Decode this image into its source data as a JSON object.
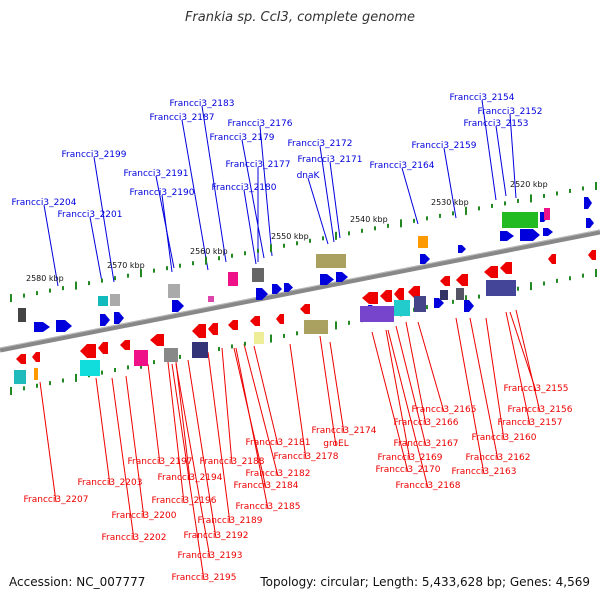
{
  "title": "Frankia sp. CcI3, complete genome",
  "footer": {
    "accession": "Accession: NC_007777",
    "topology": "Topology: circular; Length: 5,433,628 bp; Genes: 4,569"
  },
  "colors": {
    "forward": "#0000dd",
    "reverse": "#ee0000",
    "backbone": "#888888",
    "tick": "#228822"
  },
  "scale_ticks": [
    "2580 kbp",
    "2570 kbp",
    "2560 kbp",
    "2550 kbp",
    "2540 kbp",
    "2530 kbp",
    "2520 kbp"
  ],
  "top_labels": [
    "Francci3_2154",
    "Francci3_2152",
    "Francci3_2153",
    "Francci3_2183",
    "Francci3_2187",
    "Francci3_2176",
    "Francci3_2179",
    "Francci3_2172",
    "Francci3_2159",
    "Francci3_2199",
    "Francci3_2177",
    "Francci3_2171",
    "Francci3_2164",
    "Francci3_2191",
    "dnaK",
    "Francci3_2190",
    "Francci3_2180",
    "Francci3_2204",
    "Francci3_2201"
  ],
  "bottom_labels": [
    "Francci3_2155",
    "Francci3_2156",
    "Francci3_2157",
    "Francci3_2165",
    "Francci3_2160",
    "Francci3_2166",
    "Francci3_2174",
    "Francci3_2181",
    "groEL",
    "Francci3_2167",
    "Francci3_2162",
    "Francci3_2169",
    "Francci3_2178",
    "Francci3_2197",
    "Francci3_2188",
    "Francci3_2170",
    "Francci3_2163",
    "Francci3_2182",
    "Francci3_2203",
    "Francci3_2194",
    "Francci3_2168",
    "Francci3_2184",
    "Francci3_2207",
    "Francci3_2196",
    "Francci3_2185",
    "Francci3_2200",
    "Francci3_2189",
    "Francci3_2202",
    "Francci3_2192",
    "Francci3_2193",
    "Francci3_2195"
  ]
}
